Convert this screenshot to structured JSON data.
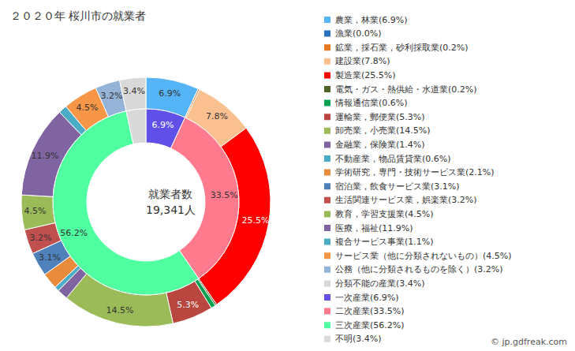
{
  "chart_data": {
    "type": "pie",
    "title": "２０２０年 桜川市の就業者",
    "annotations": [
      "就業者数",
      "19,341人",
      "© jp.gdfreak.com"
    ],
    "legend": "right",
    "data_labels": true,
    "series": [
      {
        "categories": [
          "農業，林業(6.9%)",
          "漁業(0.0%)",
          "鉱業，採石業，砂利採取業(0.2%)",
          "建設業(7.8%)",
          "製造業(25.5%)",
          "電気・ガス・熱供給・水道業(0.2%)",
          "情報通信業(0.6%)",
          "運輸業，郵便業(5.3%)",
          "卸売業，小売業(14.5%)",
          "金融業，保険業(1.4%)",
          "不動産業，物品賃貸業(0.6%)",
          "学術研究，専門・技術サービス業(2.1%)",
          "宿泊業，飲食サービス業(3.1%)",
          "生活関連サービス業，娯楽業(3.2%)",
          "教育，学習支援業(4.5%)",
          "医療，福祉(11.9%)",
          "複合サービス事業(1.1%)",
          "サービス業（他に分類されないもの）(4.5%)",
          "公務（他に分類されるものを除く）(3.2%)",
          "分類不能の産業(3.4%)"
        ],
        "values": [
          6.9,
          0.0,
          0.2,
          7.8,
          25.5,
          0.2,
          0.6,
          5.3,
          14.5,
          1.4,
          0.6,
          2.1,
          3.1,
          3.2,
          4.5,
          11.9,
          1.1,
          4.5,
          3.2,
          3.4
        ],
        "colors": [
          "#55b4f6",
          "#2a6fc0",
          "#e87722",
          "#fac090",
          "#ff0000",
          "#4f6228",
          "#00a050",
          "#b9473f",
          "#9bbb59",
          "#8064a2",
          "#4bacc6",
          "#e98b3a",
          "#4f81bd",
          "#c0504d",
          "#9bbb59",
          "#8064a2",
          "#4bacc6",
          "#f79646",
          "#95b3d7",
          "#d9d9d9"
        ],
        "value_labels": [
          "6.9%",
          null,
          null,
          "7.8%",
          "25.5%",
          null,
          null,
          "5.3%",
          "14.5%",
          null,
          null,
          null,
          "3.1%",
          "3.2%",
          "4.5%",
          "11.9%",
          null,
          "4.5%",
          "3.2%",
          "3.4%"
        ]
      },
      {
        "categories": [
          "一次産業(6.9%)",
          "二次産業(33.5%)",
          "三次産業(56.2%)",
          "不明(3.4%)"
        ],
        "values": [
          6.9,
          33.5,
          56.2,
          3.4
        ],
        "colors": [
          "#6050e8",
          "#ff7a8c",
          "#50ffa0",
          "#d9d9d9"
        ],
        "value_labels": [
          "6.9%",
          "33.5%",
          "56.2%",
          null
        ]
      }
    ]
  }
}
